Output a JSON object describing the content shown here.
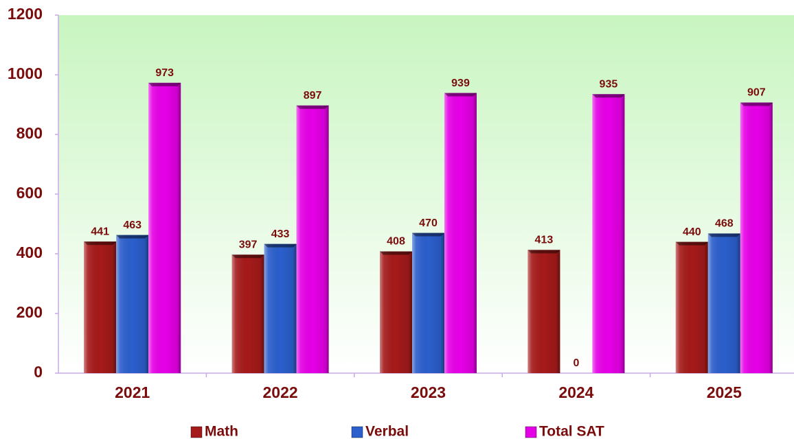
{
  "chart_data": {
    "type": "bar",
    "categories": [
      "2021",
      "2022",
      "2023",
      "2024",
      "2025"
    ],
    "series": [
      {
        "name": "Math",
        "color": "#a51a1a",
        "values": [
          441,
          397,
          408,
          413,
          440
        ]
      },
      {
        "name": "Verbal",
        "color": "#2b5fcc",
        "values": [
          463,
          433,
          470,
          0,
          468
        ]
      },
      {
        "name": "Total SAT",
        "color": "#e600e6",
        "values": [
          973,
          897,
          939,
          935,
          907
        ]
      }
    ],
    "ylim": [
      0,
      1200
    ],
    "yticks": [
      0,
      200,
      400,
      600,
      800,
      1000,
      1200
    ],
    "legend": "bottom"
  }
}
